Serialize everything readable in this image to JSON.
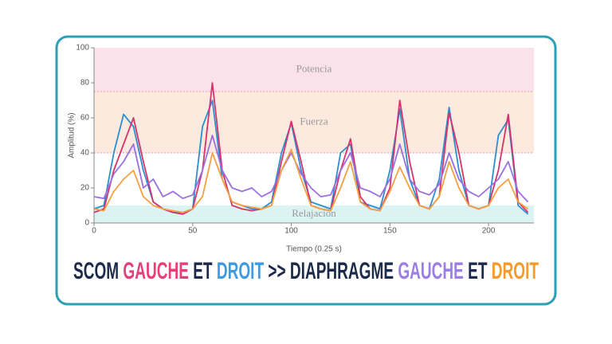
{
  "chart_data": {
    "type": "line",
    "x_label": "Tiempo (0.25 s)",
    "y_label": "Amplitud (%)",
    "xlim": [
      0,
      223
    ],
    "xticks": [
      0,
      50,
      100,
      150,
      200
    ],
    "ylim": [
      0,
      100
    ],
    "yticks": [
      0,
      20,
      40,
      60,
      80,
      100
    ],
    "bands": [
      {
        "label": "Relajación",
        "from": 0,
        "to": 10,
        "color": "#dcf3f3"
      },
      {
        "label": "Fuerza",
        "from": 40,
        "to": 75,
        "color": "#fdeadf"
      },
      {
        "label": "Potencia",
        "from": 75,
        "to": 100,
        "color": "#fbe2ea"
      }
    ],
    "x": [
      0,
      5,
      10,
      15,
      20,
      25,
      30,
      35,
      40,
      45,
      50,
      55,
      60,
      65,
      70,
      75,
      80,
      85,
      90,
      95,
      100,
      105,
      110,
      115,
      120,
      125,
      130,
      135,
      140,
      145,
      150,
      155,
      160,
      165,
      170,
      175,
      180,
      185,
      190,
      195,
      200,
      205,
      210,
      215,
      220
    ],
    "series": [
      {
        "color": "#2b8fcf",
        "values": [
          8,
          10,
          40,
          62,
          55,
          30,
          12,
          8,
          6,
          6,
          8,
          55,
          70,
          25,
          12,
          10,
          8,
          8,
          12,
          40,
          57,
          30,
          12,
          10,
          8,
          40,
          45,
          12,
          10,
          8,
          30,
          65,
          25,
          10,
          8,
          25,
          66,
          30,
          10,
          8,
          10,
          50,
          59,
          10,
          5
        ]
      },
      {
        "color": "#d6336c",
        "values": [
          6,
          8,
          30,
          45,
          60,
          35,
          12,
          8,
          6,
          5,
          8,
          30,
          80,
          30,
          10,
          8,
          7,
          8,
          10,
          35,
          58,
          35,
          10,
          8,
          7,
          30,
          48,
          15,
          8,
          7,
          20,
          70,
          35,
          10,
          8,
          15,
          63,
          40,
          10,
          8,
          10,
          30,
          62,
          12,
          6
        ]
      },
      {
        "color": "#9b6fe0",
        "values": [
          15,
          14,
          28,
          35,
          45,
          20,
          25,
          15,
          18,
          14,
          16,
          30,
          50,
          30,
          20,
          18,
          20,
          15,
          18,
          30,
          40,
          28,
          20,
          15,
          16,
          30,
          40,
          20,
          18,
          15,
          25,
          45,
          25,
          18,
          16,
          22,
          40,
          25,
          18,
          15,
          20,
          25,
          35,
          18,
          12
        ]
      },
      {
        "color": "#f5a142",
        "values": [
          8,
          7,
          18,
          25,
          30,
          15,
          10,
          8,
          7,
          6,
          8,
          15,
          40,
          25,
          12,
          10,
          9,
          8,
          10,
          30,
          42,
          25,
          10,
          8,
          7,
          20,
          35,
          12,
          8,
          7,
          18,
          32,
          20,
          10,
          8,
          15,
          35,
          20,
          10,
          8,
          10,
          20,
          25,
          12,
          8
        ]
      }
    ],
    "caption": [
      {
        "text": "SCOM ",
        "color": "#1c2b4b"
      },
      {
        "text": "GAUCHE",
        "color": "#e83e7a"
      },
      {
        "text": " ET ",
        "color": "#1c2b4b"
      },
      {
        "text": "DROIT",
        "color": "#3d9be0"
      },
      {
        "text": " >> DIAPHRAGME ",
        "color": "#1c2b4b"
      },
      {
        "text": "GAUCHE",
        "color": "#9b7ee6"
      },
      {
        "text": " ET ",
        "color": "#1c2b4b"
      },
      {
        "text": "DROIT",
        "color": "#f39b2c"
      }
    ]
  }
}
